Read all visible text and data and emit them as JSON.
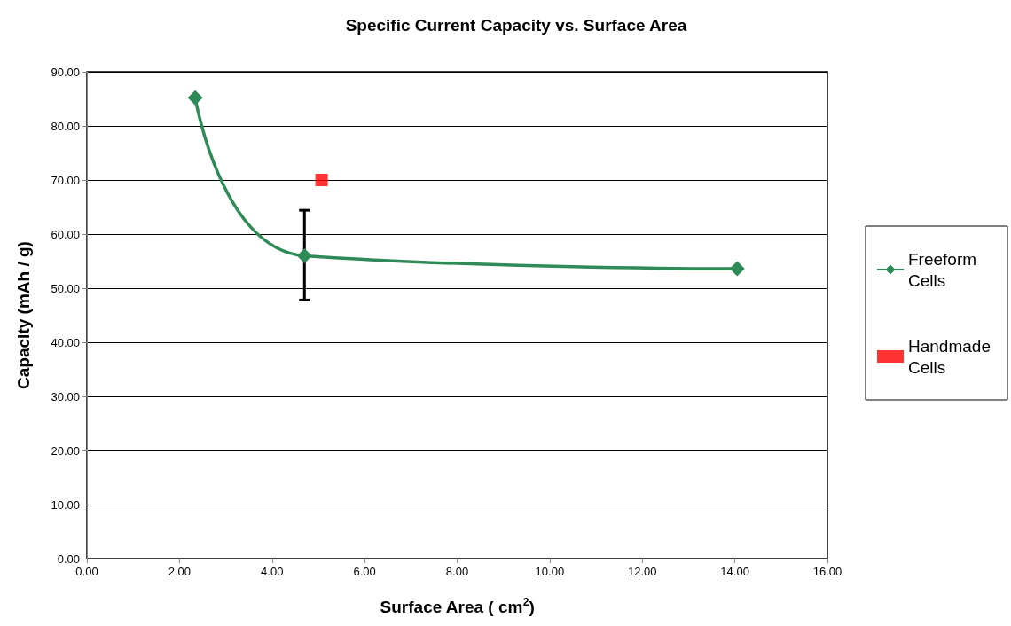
{
  "chart_data": {
    "type": "line",
    "title": "Specific Current Capacity vs. Surface Area",
    "xlabel": "Surface Area ( cm$^{2}$)",
    "ylabel": "Capacity (mAh / g)",
    "series": [
      {
        "name": "Freeform Cells",
        "color": "#2e8b57",
        "marker": "diamond",
        "x": [
          2.34,
          4.7,
          14.05
        ],
        "values": [
          85.2,
          56.0,
          53.6
        ],
        "errors": [
          null,
          [
            47.8,
            64.4
          ],
          null
        ]
      },
      {
        "name": "Handmade Cells",
        "type": "scatter",
        "color": "#ff0000",
        "marker": "square",
        "x": [
          5.07
        ],
        "values": [
          70.0
        ]
      }
    ],
    "xlim": [
      0,
      16
    ],
    "xticks": [
      {
        "value": 0,
        "label": "0.00"
      },
      {
        "value": 2,
        "label": "2.00"
      },
      {
        "value": 4,
        "label": "4.00"
      },
      {
        "value": 6,
        "label": "6.00"
      },
      {
        "value": 8,
        "label": "8.00"
      },
      {
        "value": 10,
        "label": "10.00"
      },
      {
        "value": 12,
        "label": "12.00"
      },
      {
        "value": 14,
        "label": "14.00"
      },
      {
        "value": 16,
        "label": "16.00"
      }
    ],
    "ylim": [
      0,
      90
    ],
    "yticks": [
      {
        "value": 0,
        "label": "0.00"
      },
      {
        "value": 10,
        "label": "10.00"
      },
      {
        "value": 20,
        "label": "20.00"
      },
      {
        "value": 30,
        "label": "30.00"
      },
      {
        "value": 40,
        "label": "40.00"
      },
      {
        "value": 50,
        "label": "50.00"
      },
      {
        "value": 60,
        "label": "60.00"
      },
      {
        "value": 70,
        "label": "70.00"
      },
      {
        "value": 80,
        "label": "80.00"
      },
      {
        "value": 90,
        "label": "90.00"
      }
    ],
    "grid": "y",
    "legend": "right"
  }
}
